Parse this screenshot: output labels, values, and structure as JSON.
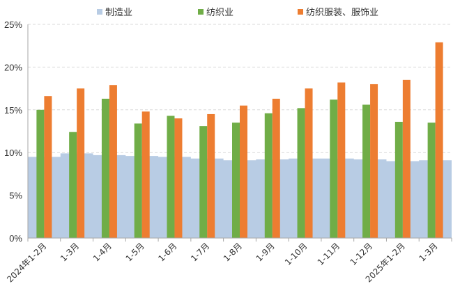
{
  "chart_data": {
    "type": "bar",
    "title": "",
    "xlabel": "",
    "ylabel": "",
    "ylim": [
      0,
      25
    ],
    "yticks": [
      "0%",
      "5%",
      "10%",
      "15%",
      "20%",
      "25%"
    ],
    "ytick_values": [
      0,
      5,
      10,
      15,
      20,
      25
    ],
    "grid": true,
    "legend_position": "top",
    "categories": [
      "2024年1-2月",
      "1-3月",
      "1-4月",
      "1-5月",
      "1-6月",
      "1-7月",
      "1-8月",
      "1-9月",
      "1-10月",
      "1-11月",
      "1-12月",
      "2025年1-2月",
      "1-3月"
    ],
    "series": [
      {
        "name": "制造业",
        "kind": "area",
        "color": "#b8cce4",
        "values": [
          9.5,
          9.9,
          9.7,
          9.6,
          9.5,
          9.3,
          9.1,
          9.2,
          9.3,
          9.3,
          9.2,
          9.0,
          9.1
        ]
      },
      {
        "name": "纺织业",
        "kind": "bar",
        "color": "#70ad47",
        "values": [
          15.0,
          12.4,
          16.3,
          13.4,
          14.3,
          13.1,
          13.5,
          14.6,
          15.2,
          16.2,
          15.6,
          13.6,
          13.5
        ]
      },
      {
        "name": "纺织服装、服饰业",
        "kind": "bar",
        "color": "#ed7d31",
        "values": [
          16.6,
          17.5,
          17.9,
          14.8,
          14.0,
          14.5,
          15.5,
          16.3,
          17.5,
          18.2,
          18.0,
          18.5,
          22.9
        ]
      }
    ]
  }
}
